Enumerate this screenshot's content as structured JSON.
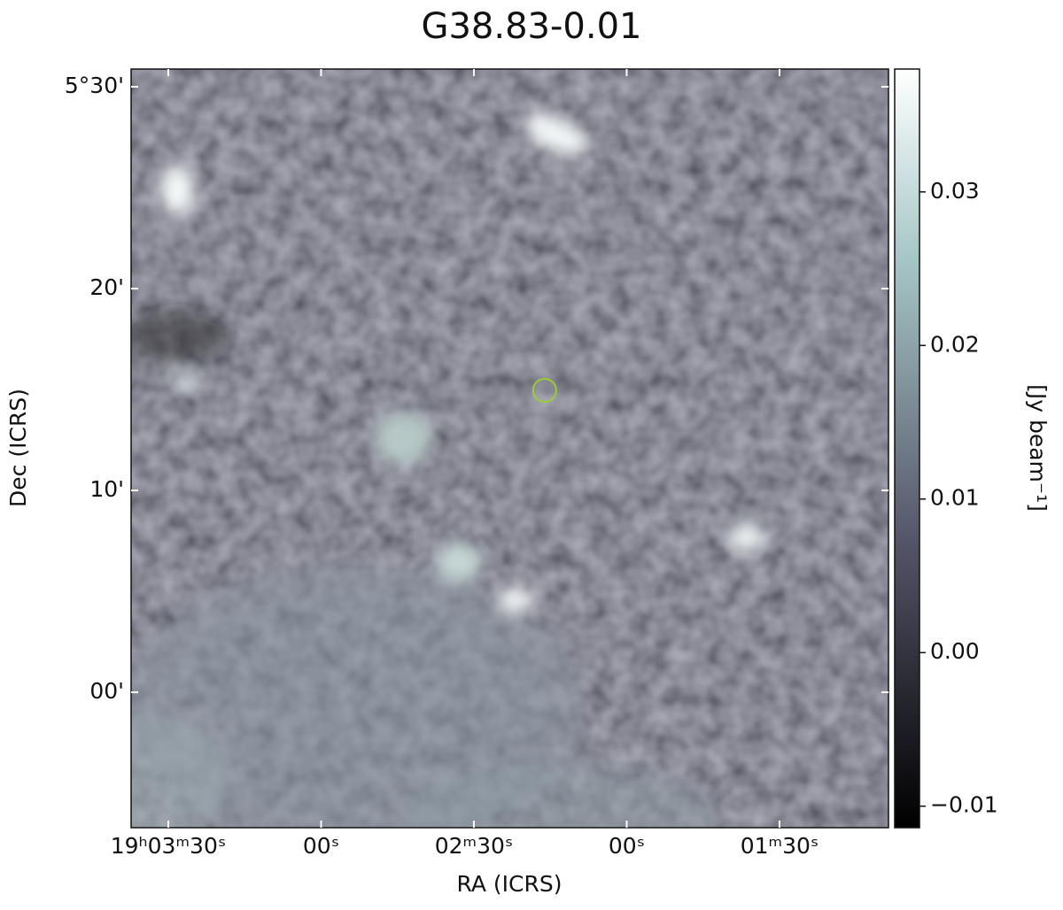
{
  "chart_data": {
    "type": "image",
    "title": "G38.83-0.01",
    "xlabel": "RA (ICRS)",
    "ylabel": "Dec (ICRS)",
    "xlim": [
      68617.3,
      68468.6
    ],
    "xticks": [
      {
        "value": 68610,
        "label": "19ʰ03ᵐ30ˢ"
      },
      {
        "value": 68580,
        "label": "00ˢ"
      },
      {
        "value": 68550,
        "label": "02ᵐ30ˢ"
      },
      {
        "value": 68520,
        "label": "00ˢ"
      },
      {
        "value": 68490,
        "label": "01ᵐ30ˢ"
      }
    ],
    "ylim": [
      4.8882,
      5.5146
    ],
    "yticks": [
      {
        "value": 5.0,
        "label": "00'"
      },
      {
        "value": 5.1667,
        "label": "10'"
      },
      {
        "value": 5.3333,
        "label": "20'"
      },
      {
        "value": 5.5,
        "label": "5°30'"
      }
    ],
    "markers": [
      {
        "x": 68536.1,
        "y": 5.2493,
        "color": "#9acd32"
      }
    ],
    "colorbar_label": "[Jy beam⁻¹]",
    "clim": [
      -0.0114,
      0.038
    ],
    "cticks": [
      {
        "value": -0.01,
        "label": "−0.01"
      },
      {
        "value": 0,
        "label": "0.00"
      },
      0.01,
      0.02,
      0.03
    ]
  }
}
